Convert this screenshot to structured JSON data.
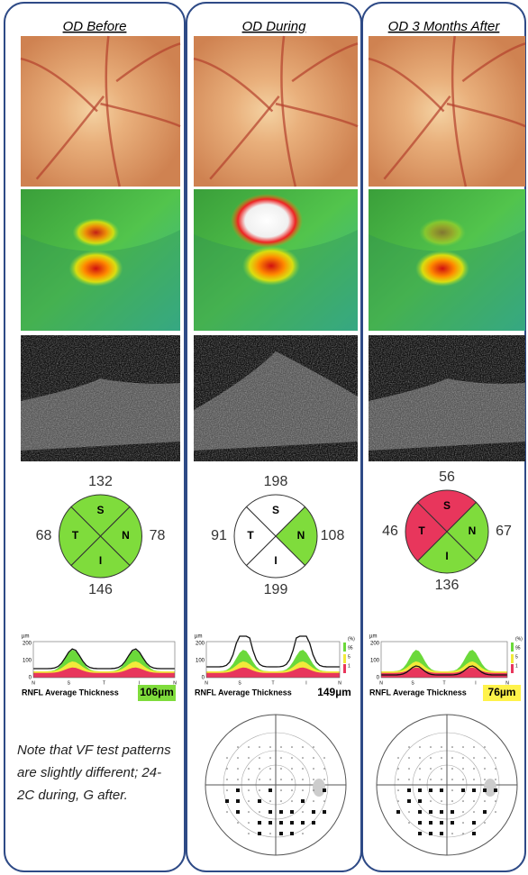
{
  "columns": [
    {
      "title": "OD Before",
      "quadrants": [
        {
          "letter": "S",
          "value": 132,
          "color": "#7fdc3c"
        },
        {
          "letter": "N",
          "value": 78,
          "color": "#7fdc3c"
        },
        {
          "letter": "I",
          "value": 146,
          "color": "#7fdc3c"
        },
        {
          "letter": "T",
          "value": 68,
          "color": "#7fdc3c"
        }
      ],
      "tsnit": {
        "unit": "µm",
        "yticks": [
          "200",
          "100",
          "0"
        ],
        "xlabels": [
          "N",
          "S",
          "T",
          "I",
          "N"
        ]
      },
      "rnfl_label": "RNFL Average Thickness",
      "rnfl_value": "106µm",
      "rnfl_color": "#7fdc3c",
      "note": "Note that VF test patterns are slightly different; 24-2C during, G after."
    },
    {
      "title": "OD During",
      "quadrants": [
        {
          "letter": "S",
          "value": 198,
          "color": "#ffffff"
        },
        {
          "letter": "N",
          "value": 108,
          "color": "#7fdc3c"
        },
        {
          "letter": "I",
          "value": 199,
          "color": "#ffffff"
        },
        {
          "letter": "T",
          "value": 91,
          "color": "#ffffff"
        }
      ],
      "tsnit": {
        "unit": "µm",
        "yticks": [
          "200",
          "100",
          "0"
        ],
        "xlabels": [
          "N",
          "S",
          "T",
          "I",
          "N"
        ],
        "legend": [
          "(%)",
          "95",
          "5",
          "1"
        ]
      },
      "rnfl_label": "RNFL Average Thickness",
      "rnfl_value": "149µm",
      "rnfl_color": "#ffffff"
    },
    {
      "title": "OD 3 Months After",
      "quadrants": [
        {
          "letter": "S",
          "value": 56,
          "color": "#e8365c"
        },
        {
          "letter": "N",
          "value": 67,
          "color": "#7fdc3c"
        },
        {
          "letter": "I",
          "value": 136,
          "color": "#7fdc3c"
        },
        {
          "letter": "T",
          "value": 46,
          "color": "#e8365c"
        }
      ],
      "tsnit": {
        "unit": "µm",
        "yticks": [
          "200",
          "100",
          "0"
        ],
        "xlabels": [
          "N",
          "S",
          "T",
          "I",
          "N"
        ],
        "legend": [
          "(%)",
          "95",
          "5",
          "1"
        ]
      },
      "rnfl_label": "RNFL Average Thickness",
      "rnfl_value": "76µm",
      "rnfl_color": "#fff24a"
    }
  ]
}
